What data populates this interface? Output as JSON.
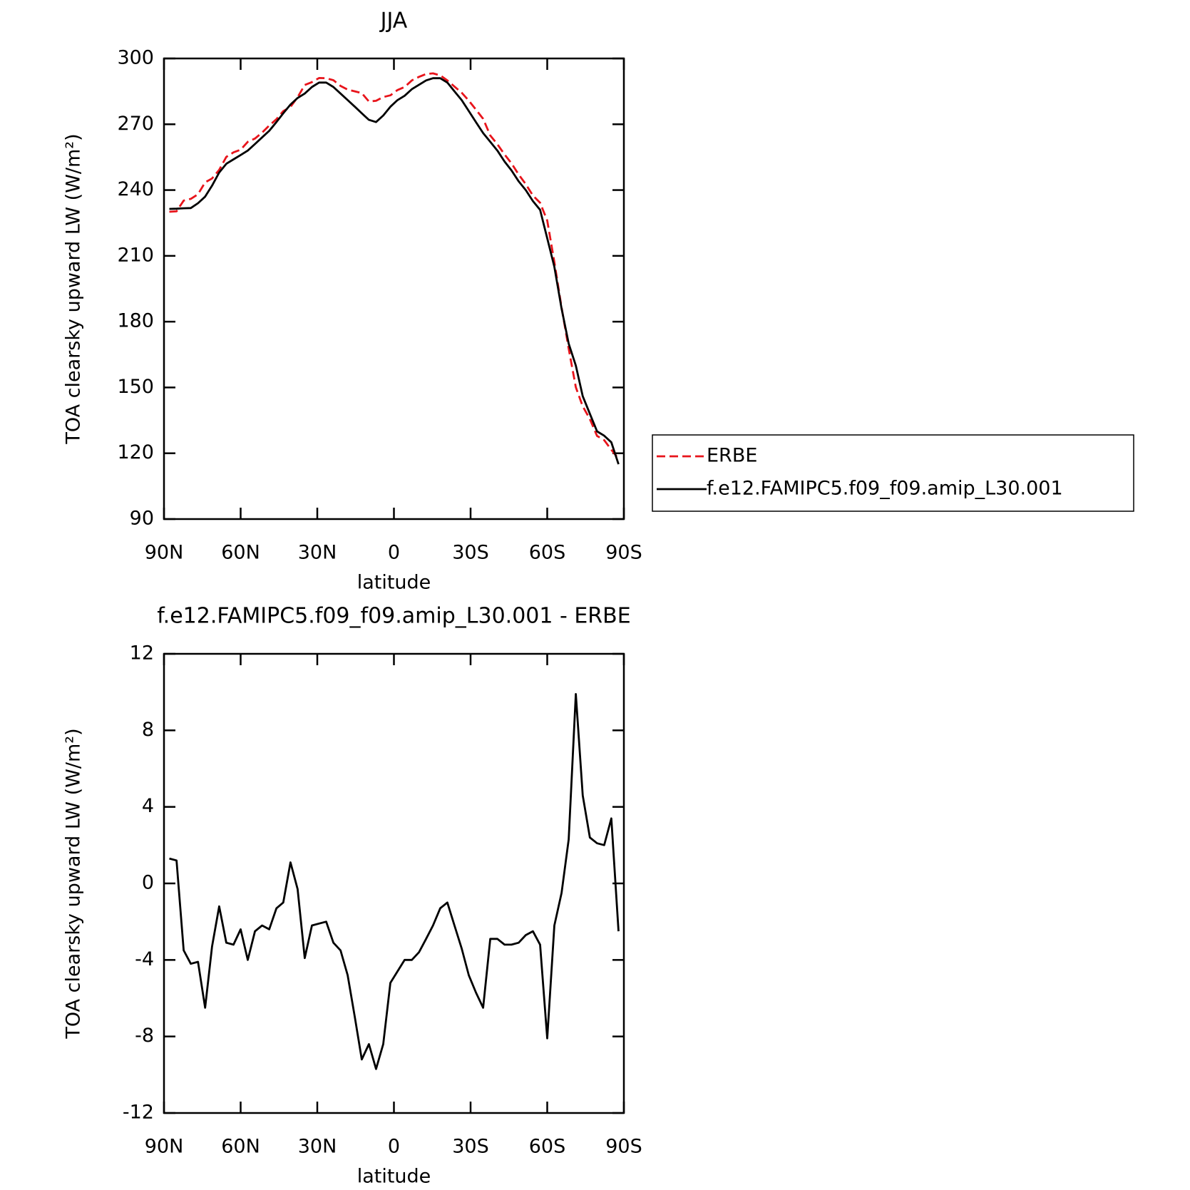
{
  "chart_data": [
    {
      "type": "line",
      "title": "JJA",
      "xlabel": "latitude",
      "ylabel": "TOA clearsky upward LW (W/m²)",
      "xlim": [
        90,
        -90
      ],
      "xticks": [
        {
          "value": 90,
          "label": "90N"
        },
        {
          "value": 60,
          "label": "60N"
        },
        {
          "value": 30,
          "label": "30N"
        },
        0,
        {
          "value": -30,
          "label": "30S"
        },
        {
          "value": -60,
          "label": "60S"
        },
        {
          "value": -90,
          "label": "90S"
        }
      ],
      "ylim": [
        90,
        300
      ],
      "yticks": [
        90,
        120,
        150,
        180,
        210,
        240,
        270,
        300
      ],
      "legend": "right",
      "x": [
        87.9,
        85.1,
        82.3,
        79.5,
        76.7,
        73.9,
        71.2,
        68.4,
        65.6,
        62.8,
        60.0,
        57.2,
        54.4,
        51.6,
        48.8,
        46.0,
        43.3,
        40.5,
        37.7,
        34.9,
        32.1,
        29.3,
        26.5,
        23.7,
        20.9,
        18.1,
        15.3,
        12.6,
        9.8,
        7.0,
        4.2,
        1.4,
        -1.4,
        -4.2,
        -7.0,
        -9.8,
        -12.6,
        -15.3,
        -18.1,
        -20.9,
        -23.7,
        -26.5,
        -29.3,
        -32.1,
        -34.9,
        -37.7,
        -40.5,
        -43.3,
        -46.0,
        -48.8,
        -51.6,
        -54.4,
        -57.2,
        -60.0,
        -62.8,
        -65.6,
        -68.4,
        -71.2,
        -73.9,
        -76.7,
        -79.5,
        -82.3,
        -85.1,
        -87.9
      ],
      "series": [
        {
          "name": "ERBE",
          "color": "#e8141b",
          "line_style": "dashed",
          "values": [
            230.1,
            230.3,
            235.2,
            236.0,
            238.1,
            243.5,
            245.3,
            249.2,
            255.1,
            257.2,
            258.4,
            262.0,
            263.5,
            266.2,
            269.4,
            272.3,
            276.0,
            277.9,
            282.3,
            287.9,
            289.2,
            291.1,
            291.0,
            290.1,
            287.5,
            285.8,
            285.0,
            284.2,
            280.4,
            280.7,
            282.4,
            283.2,
            285.6,
            287.0,
            290.0,
            291.6,
            292.9,
            293.2,
            292.3,
            290.0,
            287.2,
            284.4,
            280.8,
            276.7,
            272.5,
            264.9,
            260.9,
            256.2,
            252.2,
            247.1,
            242.7,
            237.5,
            234.2,
            226.1,
            207.2,
            186.5,
            167.7,
            150.1,
            141.4,
            135.6,
            127.9,
            126.0,
            121.6,
            117.5
          ]
        },
        {
          "name": "f.e12.FAMIPC5.f09_f09.amip_L30.001",
          "color": "#000000",
          "line_style": "solid",
          "values": [
            231.4,
            231.5,
            231.7,
            231.8,
            234,
            237,
            242,
            248,
            252,
            254,
            256,
            258,
            261,
            264,
            267,
            271,
            275,
            279,
            282,
            284,
            287,
            289,
            289,
            287,
            284,
            281,
            278,
            275,
            272,
            271,
            274,
            278,
            281,
            283,
            286,
            288,
            290,
            291,
            291,
            289,
            285,
            281,
            276,
            271,
            266,
            262,
            258,
            253,
            249,
            244,
            240,
            235,
            231,
            218,
            205,
            186,
            170,
            160,
            146,
            138,
            130,
            128,
            125,
            115
          ]
        }
      ]
    },
    {
      "type": "line",
      "title": "f.e12.FAMIPC5.f09_f09.amip_L30.001 - ERBE",
      "xlabel": "latitude",
      "ylabel": "TOA clearsky upward LW (W/m²)",
      "xlim": [
        90,
        -90
      ],
      "xticks": [
        {
          "value": 90,
          "label": "90N"
        },
        {
          "value": 60,
          "label": "60N"
        },
        {
          "value": 30,
          "label": "30N"
        },
        0,
        {
          "value": -30,
          "label": "30S"
        },
        {
          "value": -60,
          "label": "60S"
        },
        {
          "value": -90,
          "label": "90S"
        }
      ],
      "ylim": [
        -12,
        12
      ],
      "yticks": [
        -12,
        -8,
        -4,
        0,
        4,
        8,
        12
      ],
      "x": [
        87.9,
        85.1,
        82.3,
        79.5,
        76.7,
        73.9,
        71.2,
        68.4,
        65.6,
        62.8,
        60.0,
        57.2,
        54.4,
        51.6,
        48.8,
        46.0,
        43.3,
        40.5,
        37.7,
        34.9,
        32.1,
        29.3,
        26.5,
        23.7,
        20.9,
        18.1,
        15.3,
        12.6,
        9.8,
        7.0,
        4.2,
        1.4,
        -1.4,
        -4.2,
        -7.0,
        -9.8,
        -12.6,
        -15.3,
        -18.1,
        -20.9,
        -23.7,
        -26.5,
        -29.3,
        -32.1,
        -34.9,
        -37.7,
        -40.5,
        -43.3,
        -46.0,
        -48.8,
        -51.6,
        -54.4,
        -57.2,
        -60.0,
        -62.8,
        -65.6,
        -68.4,
        -71.2,
        -73.9,
        -76.7,
        -79.5,
        -82.3,
        -85.1,
        -87.9
      ],
      "color": "#000000",
      "values": [
        1.3,
        1.2,
        -3.5,
        -4.2,
        -4.1,
        -6.5,
        -3.3,
        -1.2,
        -3.1,
        -3.2,
        -2.4,
        -4.0,
        -2.5,
        -2.2,
        -2.4,
        -1.3,
        -1.0,
        1.1,
        -0.3,
        -3.9,
        -2.2,
        -2.1,
        -2.0,
        -3.1,
        -3.5,
        -4.8,
        -7.0,
        -9.2,
        -8.4,
        -9.7,
        -8.4,
        -5.2,
        -4.6,
        -4.0,
        -4.0,
        -3.6,
        -2.9,
        -2.2,
        -1.3,
        -1.0,
        -2.2,
        -3.4,
        -4.8,
        -5.7,
        -6.5,
        -2.9,
        -2.9,
        -3.2,
        -3.2,
        -3.1,
        -2.7,
        -2.5,
        -3.2,
        -8.1,
        -2.2,
        -0.5,
        2.3,
        9.9,
        4.6,
        2.4,
        2.1,
        2.0,
        3.4,
        -2.5
      ]
    }
  ]
}
